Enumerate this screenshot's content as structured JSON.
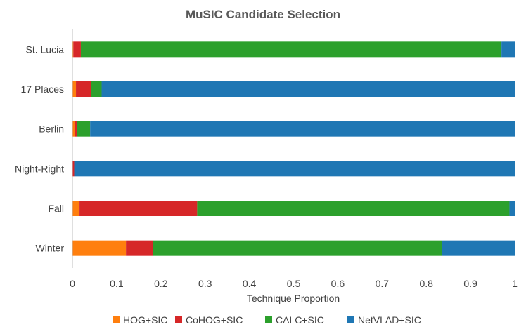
{
  "chart_data": {
    "type": "bar",
    "orientation": "horizontal",
    "stacked": true,
    "title": "MuSIC Candidate Selection",
    "xlabel": "Technique Proportion",
    "ylabel": "",
    "xlim": [
      0,
      1
    ],
    "xticks": [
      "0",
      "0.1",
      "0.2",
      "0.3",
      "0.4",
      "0.5",
      "0.6",
      "0.7",
      "0.8",
      "0.9",
      "1"
    ],
    "categories": [
      "St. Lucia",
      "17 Places",
      "Berlin",
      "Night-Right",
      "Fall",
      "Winter"
    ],
    "series": [
      {
        "name": "HOG+SIC",
        "color": "#ff7f0e",
        "values": [
          0.002,
          0.008,
          0.005,
          0.0,
          0.016,
          0.121
        ]
      },
      {
        "name": "CoHOG+SIC",
        "color": "#d62728",
        "values": [
          0.017,
          0.034,
          0.005,
          0.004,
          0.266,
          0.061
        ]
      },
      {
        "name": "CALC+SIC",
        "color": "#2ca02c",
        "values": [
          0.951,
          0.024,
          0.03,
          0.0,
          0.706,
          0.654
        ]
      },
      {
        "name": "NetVLAD+SIC",
        "color": "#1f77b4",
        "values": [
          0.03,
          0.934,
          0.96,
          0.996,
          0.012,
          0.164
        ]
      }
    ],
    "grid": false,
    "legend": "bottom"
  }
}
